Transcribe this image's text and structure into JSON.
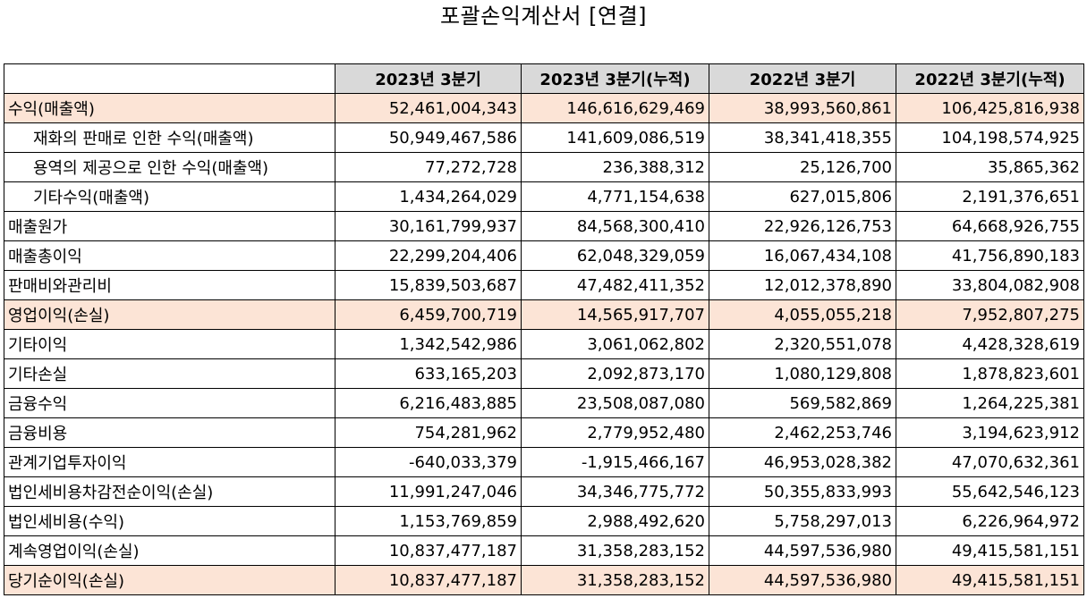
{
  "title": "포괄손익계산서 [연결]",
  "columns": [
    "2023년 3분기",
    "2023년 3분기(누적)",
    "2022년 3분기",
    "2022년 3분기(누적)"
  ],
  "highlight_color": "#fce4d6",
  "header_color": "#d9d9d9",
  "rows": [
    {
      "label": "수익(매출액)",
      "values": [
        "52,461,004,343",
        "146,616,629,469",
        "38,993,560,861",
        "106,425,816,938"
      ]
    },
    {
      "label": "재화의 판매로 인한 수익(매출액)",
      "values": [
        "50,949,467,586",
        "141,609,086,519",
        "38,341,418,355",
        "104,198,574,925"
      ]
    },
    {
      "label": "용역의 제공으로 인한 수익(매출액)",
      "values": [
        "77,272,728",
        "236,388,312",
        "25,126,700",
        "35,865,362"
      ]
    },
    {
      "label": "기타수익(매출액)",
      "values": [
        "1,434,264,029",
        "4,771,154,638",
        "627,015,806",
        "2,191,376,651"
      ]
    },
    {
      "label": "매출원가",
      "values": [
        "30,161,799,937",
        "84,568,300,410",
        "22,926,126,753",
        "64,668,926,755"
      ]
    },
    {
      "label": "매출총이익",
      "values": [
        "22,299,204,406",
        "62,048,329,059",
        "16,067,434,108",
        "41,756,890,183"
      ]
    },
    {
      "label": "판매비와관리비",
      "values": [
        "15,839,503,687",
        "47,482,411,352",
        "12,012,378,890",
        "33,804,082,908"
      ]
    },
    {
      "label": "영업이익(손실)",
      "values": [
        "6,459,700,719",
        "14,565,917,707",
        "4,055,055,218",
        "7,952,807,275"
      ]
    },
    {
      "label": "기타이익",
      "values": [
        "1,342,542,986",
        "3,061,062,802",
        "2,320,551,078",
        "4,428,328,619"
      ]
    },
    {
      "label": "기타손실",
      "values": [
        "633,165,203",
        "2,092,873,170",
        "1,080,129,808",
        "1,878,823,601"
      ]
    },
    {
      "label": "금융수익",
      "values": [
        "6,216,483,885",
        "23,508,087,080",
        "569,582,869",
        "1,264,225,381"
      ]
    },
    {
      "label": "금융비용",
      "values": [
        "754,281,962",
        "2,779,952,480",
        "2,462,253,746",
        "3,194,623,912"
      ]
    },
    {
      "label": "관계기업투자이익",
      "values": [
        "-640,033,379",
        "-1,915,466,167",
        "46,953,028,382",
        "47,070,632,361"
      ]
    },
    {
      "label": "법인세비용차감전순이익(손실)",
      "values": [
        "11,991,247,046",
        "34,346,775,772",
        "50,355,833,993",
        "55,642,546,123"
      ]
    },
    {
      "label": "법인세비용(수익)",
      "values": [
        "1,153,769,859",
        "2,988,492,620",
        "5,758,297,013",
        "6,226,964,972"
      ]
    },
    {
      "label": "계속영업이익(손실)",
      "values": [
        "10,837,477,187",
        "31,358,283,152",
        "44,597,536,980",
        "49,415,581,151"
      ]
    },
    {
      "label": "당기순이익(손실)",
      "values": [
        "10,837,477,187",
        "31,358,283,152",
        "44,597,536,980",
        "49,415,581,151"
      ]
    }
  ]
}
